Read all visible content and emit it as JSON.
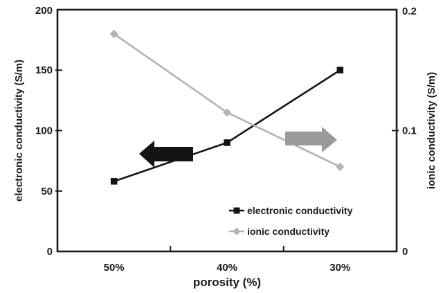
{
  "chart_data": {
    "type": "line",
    "title": "",
    "xlabel": "porosity (%)",
    "categories": [
      "50%",
      "40%",
      "30%"
    ],
    "left_axis": {
      "label": "electronic conductivity (S/m)",
      "min": 0,
      "max": 200,
      "tick_labels": [
        "0",
        "50",
        "100",
        "150",
        "200"
      ],
      "tick_values": [
        0,
        50,
        100,
        150,
        200
      ]
    },
    "right_axis": {
      "label": "ionic conductivity (S/m)",
      "min": 0,
      "max": 0.2,
      "tick_labels": [
        "0",
        "0.1",
        "0.2"
      ],
      "tick_values": [
        0,
        0.1,
        0.2
      ]
    },
    "series": [
      {
        "name": "electronic conductivity",
        "axis": "left",
        "marker": "square",
        "color": "#141414",
        "values": [
          58,
          90,
          150
        ]
      },
      {
        "name": "ionic conductivity",
        "axis": "right",
        "marker": "diamond",
        "color": "#b3b3b3",
        "values": [
          0.18,
          0.115,
          0.07
        ]
      }
    ],
    "legend": {
      "position": "inside-bottom-right",
      "entries": [
        "electronic conductivity",
        "ionic conductivity"
      ]
    },
    "annotations": [
      {
        "name": "left-arrow",
        "direction": "left",
        "color": "#141414"
      },
      {
        "name": "right-arrow",
        "direction": "right",
        "color": "#9a9a9a"
      }
    ],
    "frame_color": "#1a1a1a",
    "background": "#ffffff",
    "grid": "off"
  }
}
